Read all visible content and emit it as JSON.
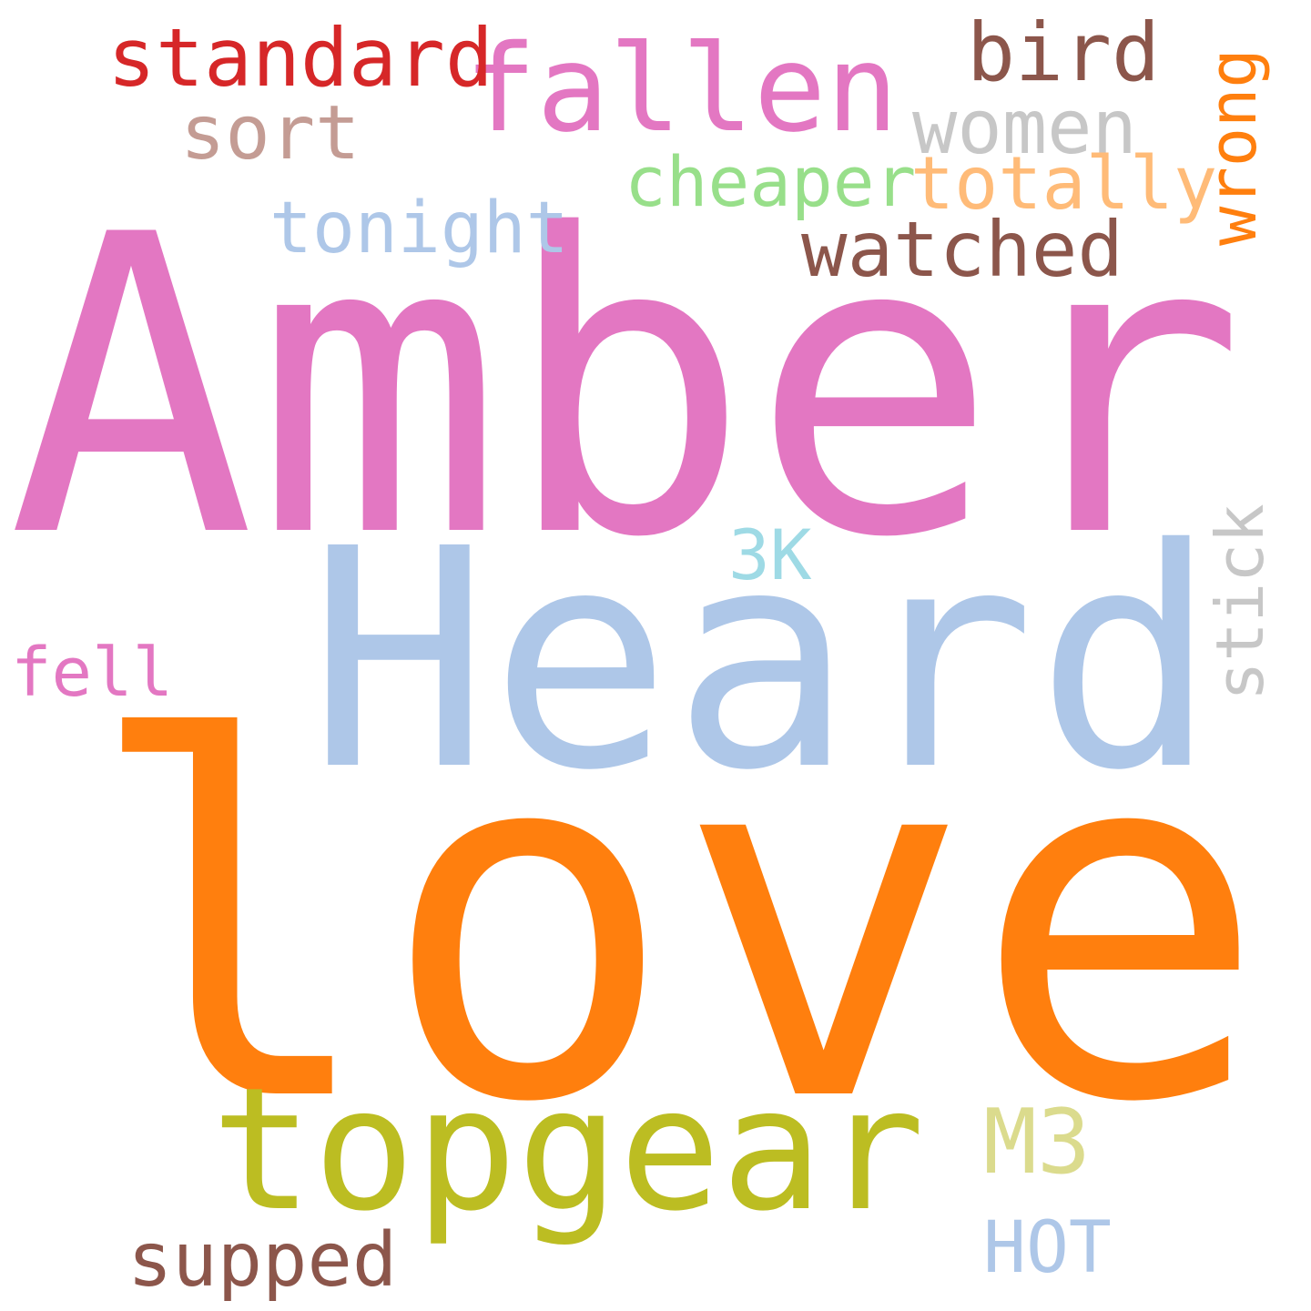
{
  "words": [
    {
      "key": "amber",
      "text": "Amber",
      "color": "#e377c2",
      "rotated": false
    },
    {
      "key": "heard",
      "text": "Heard",
      "color": "#aec7e8",
      "rotated": false
    },
    {
      "key": "love",
      "text": "love",
      "color": "#ff7f0e",
      "rotated": false
    },
    {
      "key": "topgear",
      "text": "topgear",
      "color": "#bcbd22",
      "rotated": false
    },
    {
      "key": "fallen",
      "text": "fallen",
      "color": "#e377c2",
      "rotated": false
    },
    {
      "key": "standard",
      "text": "standard",
      "color": "#d62728",
      "rotated": false
    },
    {
      "key": "bird",
      "text": "bird",
      "color": "#8c564b",
      "rotated": false
    },
    {
      "key": "sort",
      "text": "sort",
      "color": "#c49c94",
      "rotated": false
    },
    {
      "key": "women",
      "text": "women",
      "color": "#c7c7c7",
      "rotated": false
    },
    {
      "key": "cheaper",
      "text": "cheaper",
      "color": "#98df8a",
      "rotated": false
    },
    {
      "key": "totally",
      "text": "totally",
      "color": "#ffbb78",
      "rotated": false
    },
    {
      "key": "wrong",
      "text": "wrong",
      "color": "#ff7f0e",
      "rotated": true
    },
    {
      "key": "tonight",
      "text": "tonight",
      "color": "#aec7e8",
      "rotated": false
    },
    {
      "key": "watched",
      "text": "watched",
      "color": "#8c564b",
      "rotated": false
    },
    {
      "key": "3k",
      "text": "3K",
      "color": "#9edae5",
      "rotated": false
    },
    {
      "key": "stick",
      "text": "stick",
      "color": "#c7c7c7",
      "rotated": true
    },
    {
      "key": "fell",
      "text": "fell",
      "color": "#e377c2",
      "rotated": false
    },
    {
      "key": "m3",
      "text": "M3",
      "color": "#dbdb8d",
      "rotated": false
    },
    {
      "key": "supped",
      "text": "supped",
      "color": "#8c564b",
      "rotated": false
    },
    {
      "key": "hot",
      "text": "HOT",
      "color": "#aec7e8",
      "rotated": false
    }
  ]
}
